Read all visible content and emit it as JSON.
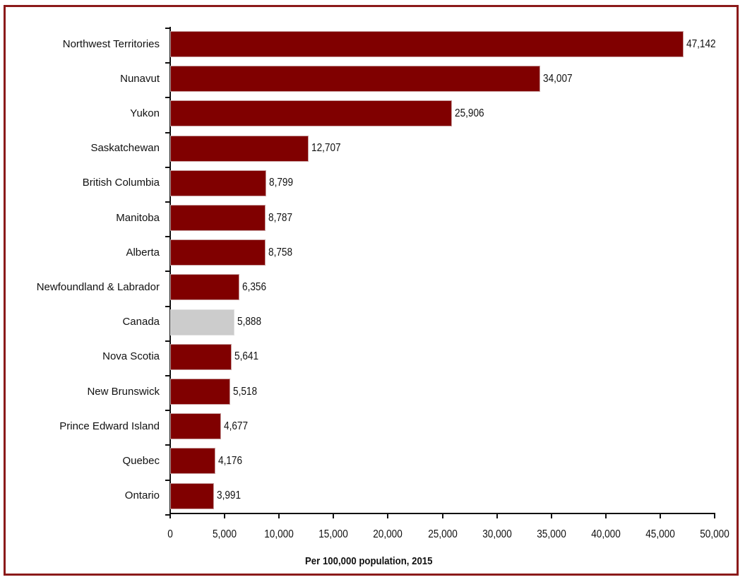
{
  "chart_data": {
    "type": "bar",
    "orientation": "horizontal",
    "title": "",
    "xlabel": "Per 100,000 population, 2015",
    "ylabel": "",
    "xlim": [
      0,
      50000
    ],
    "x_ticks": [
      "0",
      "5,000",
      "10,000",
      "15,000",
      "20,000",
      "25,000",
      "30,000",
      "35,000",
      "40,000",
      "45,000",
      "50,000"
    ],
    "grid": false,
    "legend": null,
    "colors": {
      "default": "#800000",
      "highlight": "#cccccc",
      "frame": "#8b1a1a"
    },
    "categories": [
      "Northwest Territories",
      "Nunavut",
      "Yukon",
      "Saskatchewan",
      "British Columbia",
      "Manitoba",
      "Alberta",
      "Newfoundland & Labrador",
      "Canada",
      "Nova Scotia",
      "New Brunswick",
      "Prince Edward Island",
      "Quebec",
      "Ontario"
    ],
    "values": [
      47142,
      34007,
      25906,
      12707,
      8799,
      8787,
      8758,
      6356,
      5888,
      5641,
      5518,
      4677,
      4176,
      3991
    ],
    "value_labels": [
      "47,142",
      "34,007",
      "25,906",
      "12,707",
      "8,799",
      "8,787",
      "8,758",
      "6,356",
      "5,888",
      "5,641",
      "5,518",
      "4,677",
      "4,176",
      "3,991"
    ],
    "highlighted_category": "Canada"
  }
}
